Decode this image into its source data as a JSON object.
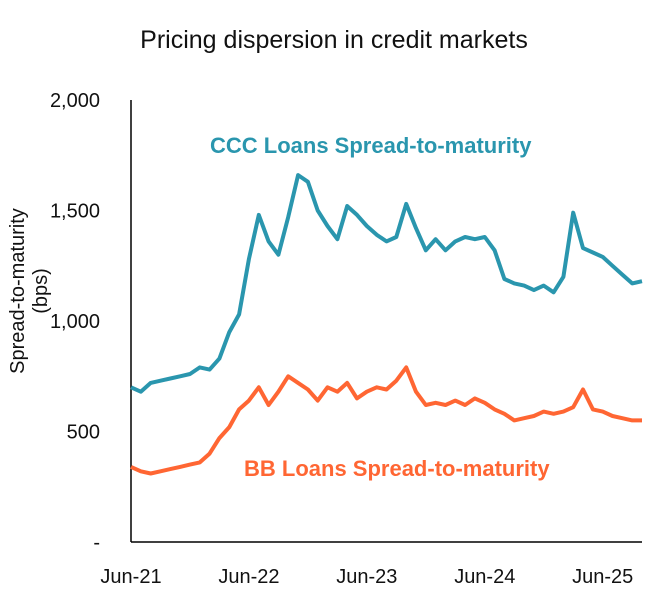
{
  "chart_data": {
    "type": "line",
    "title": "Pricing dispersion in credit markets",
    "xlabel": "",
    "ylabel": "Spread-to-maturity (bps)",
    "ylim": [
      0,
      2000
    ],
    "yticks": [
      0,
      500,
      1000,
      1500,
      2000
    ],
    "ytick_labels": [
      "-",
      "500",
      "1,000",
      "1,500",
      "2,000"
    ],
    "xticks": [
      "2021-06",
      "2022-06",
      "2023-06",
      "2024-06",
      "2025-06"
    ],
    "xtick_labels": [
      "Jun-21",
      "Jun-22",
      "Jun-23",
      "Jun-24",
      "Jun-25"
    ],
    "xlim": [
      "2021-06",
      "2025-10"
    ],
    "grid": false,
    "legend": "none (direct labels)",
    "series": [
      {
        "name": "CCC Loans Spread-to-maturity",
        "color": "#2A96AE",
        "start": "2021-06",
        "frequency": "monthly",
        "values": [
          700,
          680,
          720,
          730,
          740,
          750,
          760,
          790,
          780,
          830,
          950,
          1030,
          1280,
          1480,
          1360,
          1300,
          1470,
          1660,
          1630,
          1500,
          1430,
          1370,
          1520,
          1480,
          1430,
          1390,
          1360,
          1380,
          1530,
          1420,
          1320,
          1370,
          1320,
          1360,
          1380,
          1370,
          1380,
          1320,
          1190,
          1170,
          1160,
          1140,
          1160,
          1130,
          1200,
          1490,
          1330,
          1310,
          1290,
          1250,
          1210,
          1170,
          1180
        ]
      },
      {
        "name": "BB Loans Spread-to-maturity",
        "color": "#FF6633",
        "start": "2021-06",
        "frequency": "monthly",
        "values": [
          340,
          320,
          310,
          320,
          330,
          340,
          350,
          360,
          400,
          470,
          520,
          600,
          640,
          700,
          620,
          680,
          750,
          720,
          690,
          640,
          700,
          680,
          720,
          650,
          680,
          700,
          690,
          730,
          790,
          680,
          620,
          630,
          620,
          640,
          620,
          650,
          630,
          600,
          580,
          550,
          560,
          570,
          590,
          580,
          590,
          610,
          690,
          600,
          590,
          570,
          560,
          550,
          550
        ]
      }
    ]
  }
}
